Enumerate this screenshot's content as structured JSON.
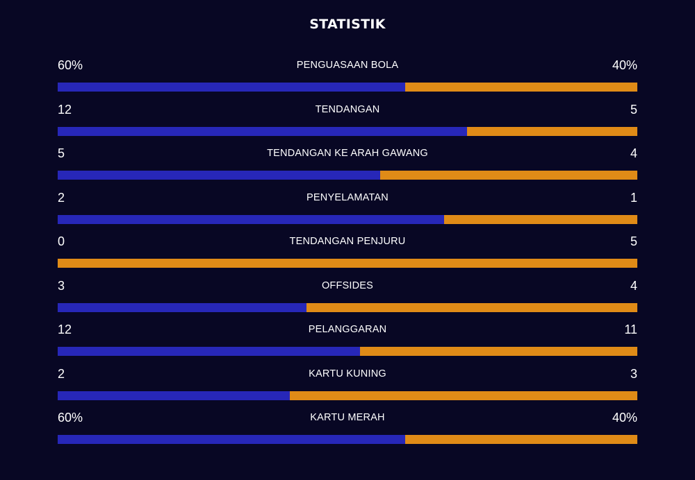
{
  "title": "STATISTIK",
  "colors": {
    "background": "#080724",
    "home_bar": "#2727b8",
    "away_bar": "#e08b17"
  },
  "stats": [
    {
      "label": "PENGUASAAN BOLA",
      "home": "60%",
      "away": "40%",
      "home_share": 0.6
    },
    {
      "label": "TENDANGAN",
      "home": "12",
      "away": "5",
      "home_share": 0.706
    },
    {
      "label": "TENDANGAN KE ARAH GAWANG",
      "home": "5",
      "away": "4",
      "home_share": 0.556
    },
    {
      "label": "PENYELAMATAN",
      "home": "2",
      "away": "1",
      "home_share": 0.667
    },
    {
      "label": "TENDANGAN PENJURU",
      "home": "0",
      "away": "5",
      "home_share": 0.0
    },
    {
      "label": "OFFSIDES",
      "home": "3",
      "away": "4",
      "home_share": 0.429
    },
    {
      "label": "PELANGGARAN",
      "home": "12",
      "away": "11",
      "home_share": 0.522
    },
    {
      "label": "KARTU KUNING",
      "home": "2",
      "away": "3",
      "home_share": 0.4
    },
    {
      "label": "KARTU MERAH",
      "home": "60%",
      "away": "40%",
      "home_share": 0.6
    }
  ]
}
